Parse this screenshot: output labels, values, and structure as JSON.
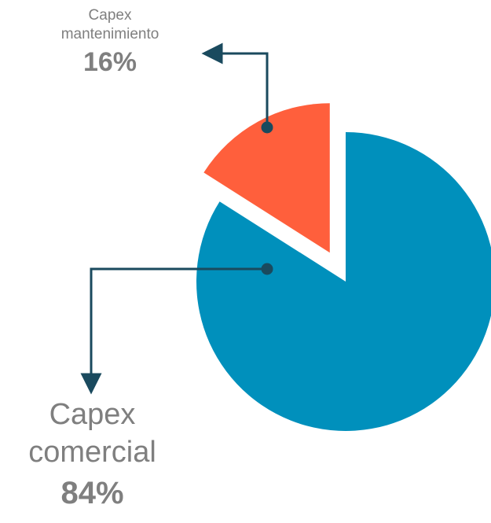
{
  "chart_data": {
    "type": "pie",
    "series": [
      {
        "label": "Capex\nmantenimiento",
        "value": 16,
        "display": "16%",
        "color": "#ff5f3c"
      },
      {
        "label": "Capex\ncomercial",
        "value": 84,
        "display": "84%",
        "color": "#0090bc"
      }
    ],
    "exploded": true,
    "leader_line_color": "#1a4a5e"
  }
}
